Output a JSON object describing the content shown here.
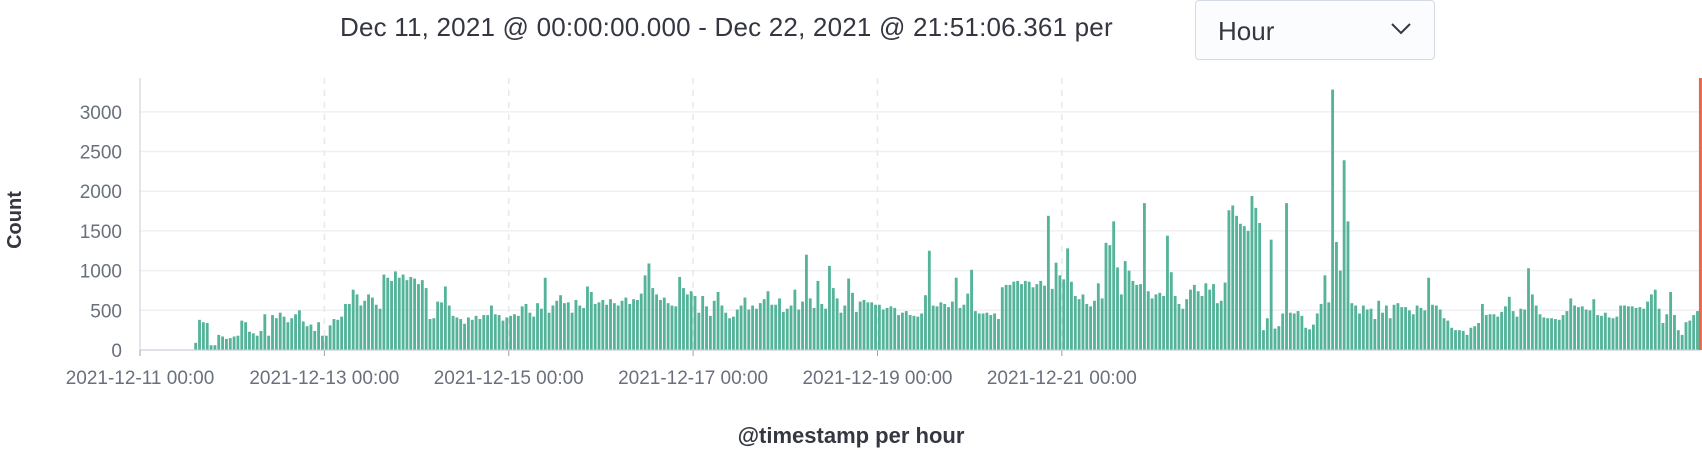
{
  "header": {
    "range_text": "Dec 11, 2021 @ 00:00:00.000 - Dec 22, 2021 @ 21:51:06.361 per",
    "interval_value": "Hour"
  },
  "chart_data": {
    "type": "bar",
    "title": "",
    "xlabel": "@timestamp per hour",
    "ylabel": "Count",
    "ylim": [
      0,
      3300
    ],
    "yticks": [
      0,
      500,
      1000,
      1500,
      2000,
      2500,
      3000
    ],
    "xticks": [
      "2021-12-11 00:00",
      "2021-12-13 00:00",
      "2021-12-15 00:00",
      "2021-12-17 00:00",
      "2021-12-19 00:00",
      "2021-12-21 00:00"
    ],
    "x_start": "2021-12-11 00:00",
    "x_end": "2021-12-22 21:51",
    "bar_color": "#54b399",
    "now_marker_color": "#e7664c",
    "grid": true,
    "values": [
      0,
      0,
      0,
      0,
      0,
      0,
      0,
      0,
      0,
      0,
      0,
      0,
      0,
      0,
      90,
      380,
      350,
      340,
      60,
      60,
      190,
      170,
      140,
      150,
      170,
      180,
      370,
      350,
      230,
      210,
      180,
      240,
      450,
      180,
      440,
      400,
      470,
      420,
      350,
      400,
      450,
      500,
      360,
      300,
      320,
      240,
      350,
      180,
      180,
      310,
      390,
      380,
      420,
      580,
      580,
      760,
      700,
      560,
      620,
      700,
      660,
      570,
      520,
      950,
      910,
      870,
      990,
      910,
      950,
      880,
      920,
      900,
      830,
      880,
      780,
      390,
      400,
      610,
      600,
      800,
      560,
      430,
      410,
      390,
      330,
      410,
      380,
      430,
      390,
      440,
      440,
      560,
      450,
      440,
      370,
      410,
      430,
      450,
      430,
      550,
      580,
      470,
      420,
      590,
      520,
      910,
      470,
      560,
      620,
      690,
      590,
      600,
      470,
      630,
      560,
      530,
      800,
      730,
      580,
      600,
      630,
      570,
      640,
      590,
      560,
      620,
      660,
      580,
      640,
      630,
      710,
      940,
      1090,
      780,
      700,
      630,
      660,
      590,
      560,
      550,
      920,
      780,
      700,
      740,
      680,
      470,
      680,
      550,
      430,
      620,
      730,
      560,
      470,
      400,
      420,
      510,
      560,
      660,
      510,
      560,
      520,
      590,
      640,
      740,
      570,
      570,
      650,
      480,
      520,
      560,
      760,
      510,
      610,
      1200,
      650,
      530,
      870,
      580,
      520,
      1060,
      780,
      650,
      470,
      560,
      900,
      720,
      480,
      610,
      630,
      600,
      600,
      570,
      570,
      510,
      530,
      550,
      530,
      440,
      470,
      490,
      440,
      430,
      420,
      460,
      690,
      1250,
      560,
      550,
      600,
      580,
      540,
      610,
      910,
      530,
      570,
      710,
      1010,
      490,
      460,
      460,
      470,
      440,
      460,
      390,
      790,
      820,
      820,
      860,
      870,
      830,
      870,
      860,
      790,
      830,
      870,
      810,
      1690,
      770,
      1100,
      940,
      890,
      1280,
      860,
      680,
      640,
      700,
      580,
      550,
      620,
      840,
      650,
      1350,
      1320,
      1620,
      1040,
      700,
      1120,
      1000,
      870,
      820,
      830,
      1850,
      740,
      650,
      700,
      720,
      680,
      1440,
      980,
      680,
      580,
      520,
      640,
      760,
      820,
      740,
      680,
      840,
      760,
      830,
      590,
      620,
      850,
      1760,
      1820,
      1690,
      1590,
      1560,
      1500,
      1940,
      1790,
      1600,
      250,
      400,
      1390,
      270,
      300,
      460,
      1850,
      470,
      460,
      490,
      430,
      280,
      260,
      320,
      460,
      580,
      940,
      600,
      3280,
      1360,
      1000,
      2390,
      1620,
      590,
      560,
      460,
      560,
      510,
      520,
      390,
      620,
      470,
      560,
      400,
      570,
      590,
      540,
      540,
      500,
      450,
      560,
      530,
      500,
      910,
      570,
      560,
      510,
      400,
      370,
      280,
      250,
      250,
      240,
      190,
      280,
      300,
      340,
      580,
      440,
      450,
      450,
      420,
      480,
      550,
      670,
      490,
      420,
      520,
      510,
      1030,
      700,
      560,
      450,
      410,
      400,
      400,
      390,
      380,
      440,
      490,
      650,
      560,
      540,
      550,
      510,
      500,
      640,
      440,
      430,
      470,
      410,
      400,
      420,
      560,
      560,
      550,
      550,
      530,
      540,
      520,
      610,
      700,
      760,
      520,
      340,
      450,
      730,
      440,
      250,
      190,
      350,
      370,
      440,
      490
    ]
  }
}
